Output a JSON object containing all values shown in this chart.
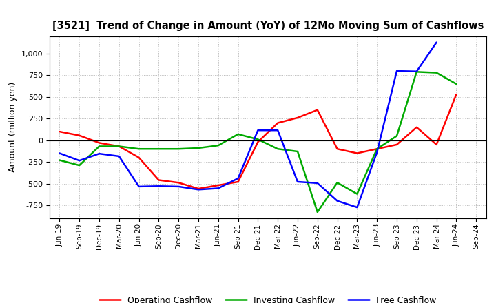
{
  "title": "[3521]  Trend of Change in Amount (YoY) of 12Mo Moving Sum of Cashflows",
  "ylabel": "Amount (million yen)",
  "x_labels": [
    "Jun-19",
    "Sep-19",
    "Dec-19",
    "Mar-20",
    "Jun-20",
    "Sep-20",
    "Dec-20",
    "Mar-21",
    "Jun-21",
    "Sep-21",
    "Dec-21",
    "Mar-22",
    "Jun-22",
    "Sep-22",
    "Dec-22",
    "Mar-23",
    "Jun-23",
    "Sep-23",
    "Dec-23",
    "Mar-24",
    "Jun-24",
    "Sep-24"
  ],
  "operating_cashflow": [
    100,
    55,
    -30,
    -70,
    -200,
    -460,
    -490,
    -560,
    -520,
    -480,
    -20,
    200,
    260,
    350,
    -100,
    -150,
    -100,
    -50,
    150,
    -50,
    530,
    null
  ],
  "investing_cashflow": [
    -230,
    -290,
    -70,
    -70,
    -100,
    -100,
    -100,
    -90,
    -60,
    70,
    10,
    -100,
    -130,
    -830,
    -490,
    -620,
    -100,
    50,
    790,
    780,
    650,
    null
  ],
  "free_cashflow": [
    -150,
    -235,
    -155,
    -185,
    -535,
    -530,
    -535,
    -570,
    -555,
    -440,
    115,
    115,
    -480,
    -495,
    -700,
    -775,
    -140,
    800,
    795,
    1130,
    null,
    null
  ],
  "operating_color": "#ff0000",
  "investing_color": "#00aa00",
  "free_color": "#0000ff",
  "background_color": "#ffffff",
  "grid_color": "#bbbbbb",
  "ylim": [
    -900,
    1200
  ],
  "yticks": [
    -750,
    -500,
    -250,
    0,
    250,
    500,
    750,
    1000
  ],
  "legend_labels": [
    "Operating Cashflow",
    "Investing Cashflow",
    "Free Cashflow"
  ]
}
